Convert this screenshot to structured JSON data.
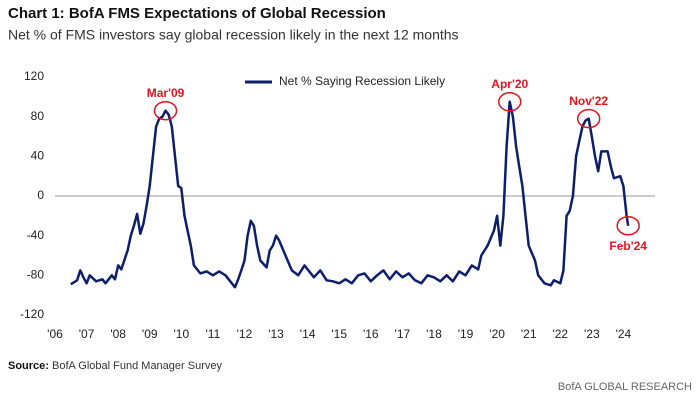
{
  "chart_data": {
    "type": "line",
    "title": "Chart 1: BofA FMS Expectations of Global Recession",
    "subtitle": "Net % of FMS investors say global recession likely in the next 12 months",
    "source_label": "Source:",
    "source": "BofA Global Fund Manager Survey",
    "footer": "BofA GLOBAL RESEARCH",
    "xlim": [
      2006,
      2025
    ],
    "xticks": [
      {
        "value": 2006,
        "label": "'06"
      },
      {
        "value": 2007,
        "label": "'07"
      },
      {
        "value": 2008,
        "label": "'08"
      },
      {
        "value": 2009,
        "label": "'09"
      },
      {
        "value": 2010,
        "label": "'10"
      },
      {
        "value": 2011,
        "label": "'11"
      },
      {
        "value": 2012,
        "label": "'12"
      },
      {
        "value": 2013,
        "label": "'13"
      },
      {
        "value": 2014,
        "label": "'14"
      },
      {
        "value": 2015,
        "label": "'15"
      },
      {
        "value": 2016,
        "label": "'16"
      },
      {
        "value": 2017,
        "label": "'17"
      },
      {
        "value": 2018,
        "label": "'18"
      },
      {
        "value": 2019,
        "label": "'19"
      },
      {
        "value": 2020,
        "label": "'20"
      },
      {
        "value": 2021,
        "label": "'21"
      },
      {
        "value": 2022,
        "label": "'22"
      },
      {
        "value": 2023,
        "label": "'23"
      },
      {
        "value": 2024,
        "label": "'24"
      }
    ],
    "ylim": [
      -120,
      120
    ],
    "yticks": [
      -120,
      -80,
      -40,
      0,
      40,
      80,
      120
    ],
    "grid": false,
    "x": [
      2006.5,
      2006.7,
      2006.8,
      2006.9,
      2007.0,
      2007.1,
      2007.3,
      2007.5,
      2007.6,
      2007.8,
      2007.9,
      2008.0,
      2008.1,
      2008.3,
      2008.4,
      2008.5,
      2008.6,
      2008.7,
      2008.8,
      2008.9,
      2009.0,
      2009.1,
      2009.2,
      2009.3,
      2009.4,
      2009.5,
      2009.6,
      2009.7,
      2009.8,
      2009.9,
      2010.0,
      2010.1,
      2010.2,
      2010.3,
      2010.4,
      2010.6,
      2010.8,
      2011.0,
      2011.2,
      2011.4,
      2011.6,
      2011.7,
      2011.8,
      2011.9,
      2012.0,
      2012.1,
      2012.2,
      2012.3,
      2012.4,
      2012.5,
      2012.7,
      2012.8,
      2012.9,
      2013.0,
      2013.1,
      2013.3,
      2013.5,
      2013.7,
      2013.9,
      2014.0,
      2014.2,
      2014.4,
      2014.6,
      2014.8,
      2015.0,
      2015.2,
      2015.4,
      2015.6,
      2015.8,
      2016.0,
      2016.2,
      2016.4,
      2016.6,
      2016.8,
      2017.0,
      2017.2,
      2017.4,
      2017.6,
      2017.8,
      2018.0,
      2018.2,
      2018.4,
      2018.6,
      2018.8,
      2019.0,
      2019.2,
      2019.4,
      2019.5,
      2019.7,
      2019.9,
      2020.0,
      2020.1,
      2020.2,
      2020.3,
      2020.4,
      2020.5,
      2020.6,
      2020.7,
      2020.8,
      2020.9,
      2021.0,
      2021.2,
      2021.3,
      2021.5,
      2021.7,
      2021.8,
      2022.0,
      2022.1,
      2022.2,
      2022.3,
      2022.4,
      2022.5,
      2022.6,
      2022.7,
      2022.8,
      2022.9,
      2023.0,
      2023.1,
      2023.2,
      2023.3,
      2023.5,
      2023.6,
      2023.7,
      2023.9,
      2024.0,
      2024.1,
      2024.15
    ],
    "series": [
      {
        "name": "Net % Saying Recession Likely",
        "color": "#0d1f6b",
        "values": [
          -89,
          -85,
          -75,
          -82,
          -88,
          -80,
          -86,
          -84,
          -88,
          -80,
          -84,
          -70,
          -74,
          -55,
          -40,
          -30,
          -18,
          -38,
          -28,
          -10,
          10,
          40,
          70,
          78,
          80,
          86,
          82,
          70,
          40,
          10,
          8,
          -20,
          -35,
          -50,
          -70,
          -78,
          -76,
          -80,
          -76,
          -80,
          -88,
          -92,
          -84,
          -75,
          -65,
          -40,
          -25,
          -30,
          -50,
          -65,
          -72,
          -55,
          -50,
          -40,
          -45,
          -60,
          -75,
          -80,
          -70,
          -74,
          -82,
          -75,
          -85,
          -86,
          -88,
          -84,
          -88,
          -80,
          -78,
          -86,
          -80,
          -75,
          -84,
          -76,
          -82,
          -78,
          -85,
          -88,
          -80,
          -82,
          -86,
          -80,
          -86,
          -76,
          -80,
          -70,
          -74,
          -60,
          -50,
          -35,
          -20,
          -50,
          -20,
          50,
          95,
          80,
          50,
          30,
          10,
          -20,
          -50,
          -65,
          -80,
          -88,
          -90,
          -85,
          -88,
          -75,
          -20,
          -15,
          0,
          40,
          55,
          70,
          76,
          78,
          60,
          40,
          25,
          45,
          45,
          30,
          18,
          20,
          10,
          -20,
          -30
        ]
      }
    ],
    "annotations": [
      {
        "label": "Mar'09",
        "x": 2009.5,
        "y": 86
      },
      {
        "label": "Apr'20",
        "x": 2020.4,
        "y": 95
      },
      {
        "label": "Nov'22",
        "x": 2022.9,
        "y": 78
      },
      {
        "label": "Feb'24",
        "x": 2024.15,
        "y": -30
      }
    ]
  }
}
